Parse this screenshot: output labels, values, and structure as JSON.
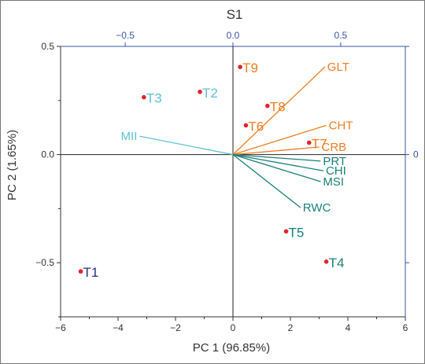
{
  "chart_data": {
    "type": "scatter",
    "title": "S1",
    "xlabel": "PC 1 (96.85%)",
    "ylabel": "PC 2 (1.65%)",
    "xlim": [
      -6,
      6
    ],
    "ylim": [
      -0.75,
      0.5
    ],
    "x_ticks": [
      -6,
      -4,
      -2,
      0,
      2,
      4,
      6
    ],
    "x_tick_labels": [
      "−6",
      "−4",
      "−2",
      "0",
      "2",
      "4",
      "6"
    ],
    "y_ticks": [
      -0.5,
      0,
      0.5
    ],
    "y_tick_labels": [
      "−0.5",
      "0.0",
      "0.5"
    ],
    "secondary_x_ticks": [
      -0.5,
      0,
      0.5
    ],
    "secondary_x_tick_labels": [
      "−0.5",
      "0.0",
      "0.5"
    ],
    "secondary_x_lim": [
      -0.8,
      0.8
    ],
    "secondary_y_ticks": [
      0
    ],
    "secondary_y_tick_labels": [
      "0"
    ],
    "grid": false,
    "point_color": "#e8222a",
    "secondary_axis_color": "#3a55a8",
    "scores": [
      {
        "label": "T1",
        "x": -5.3,
        "y": -0.54,
        "color": "#2b2e86"
      },
      {
        "label": "T2",
        "x": -1.15,
        "y": 0.29,
        "color": "#5bc2d6"
      },
      {
        "label": "T3",
        "x": -3.1,
        "y": 0.265,
        "color": "#5bc2d6"
      },
      {
        "label": "T4",
        "x": 3.25,
        "y": -0.495,
        "color": "#1a8078"
      },
      {
        "label": "T5",
        "x": 1.85,
        "y": -0.355,
        "color": "#1a8078"
      },
      {
        "label": "T6",
        "x": 0.45,
        "y": 0.135,
        "color": "#ee7d23"
      },
      {
        "label": "T7",
        "x": 2.65,
        "y": 0.055,
        "color": "#ee7d23"
      },
      {
        "label": "T8",
        "x": 1.2,
        "y": 0.225,
        "color": "#ee7d23"
      },
      {
        "label": "T9",
        "x": 0.25,
        "y": 0.405,
        "color": "#ee7d23"
      }
    ],
    "loadings": [
      {
        "label": "GLT",
        "x": 3.2,
        "y": 0.405,
        "color": "#ee7d23"
      },
      {
        "label": "CHT",
        "x": 3.25,
        "y": 0.135,
        "color": "#ee7d23"
      },
      {
        "label": "CRB",
        "x": 3.0,
        "y": 0.035,
        "color": "#ee7d23"
      },
      {
        "label": "PRT",
        "x": 3.05,
        "y": -0.03,
        "color": "#1a8078"
      },
      {
        "label": "CHI",
        "x": 3.15,
        "y": -0.075,
        "color": "#1a8078"
      },
      {
        "label": "MSI",
        "x": 3.05,
        "y": -0.125,
        "color": "#1a8078"
      },
      {
        "label": "RWC",
        "x": 2.35,
        "y": -0.245,
        "color": "#1a8078"
      },
      {
        "label": "MII",
        "x": -3.25,
        "y": 0.085,
        "color": "#5bc2d6"
      }
    ]
  }
}
